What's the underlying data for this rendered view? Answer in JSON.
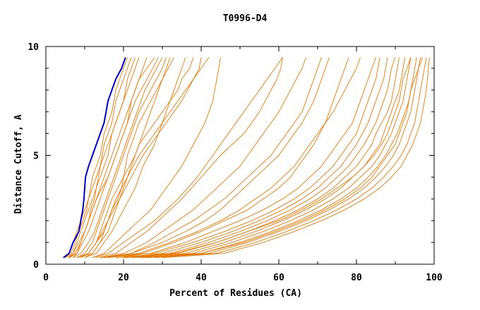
{
  "chart_data": {
    "type": "line",
    "title": "T0996-D4",
    "xlabel": "Percent of Residues (CA)",
    "ylabel": "Distance Cutoff, A",
    "xlim": [
      0,
      100
    ],
    "ylim": [
      0,
      10
    ],
    "x_ticks": [
      0,
      20,
      40,
      60,
      80,
      100
    ],
    "x_tick_labels": [
      "0",
      "20",
      "40",
      "60",
      "80",
      "100"
    ],
    "y_ticks": [
      0,
      5,
      10
    ],
    "y_tick_labels": [
      "0",
      "5",
      "10"
    ],
    "grid": false,
    "legend": "none",
    "colors": {
      "highlight": "#0000cc",
      "others": "#e87800",
      "axis": "#000000"
    },
    "y_levels": [
      0.3,
      0.5,
      1,
      1.5,
      2,
      2.5,
      3,
      3.5,
      4,
      4.5,
      5,
      5.5,
      6,
      6.5,
      7,
      7.5,
      8,
      8.5,
      9,
      9.5
    ],
    "highlight_series": {
      "x": [
        4.5,
        6,
        7,
        8.5,
        9,
        9.5,
        9.8,
        10,
        10.2,
        11,
        12,
        13,
        14,
        15,
        15.5,
        16,
        17,
        18,
        19.5,
        20.5
      ]
    },
    "series": [
      {
        "x": [
          5,
          6.5,
          7.5,
          8.5,
          9.5,
          10.5,
          11,
          11.5,
          12,
          13,
          14,
          14.5,
          15,
          16,
          17,
          17.5,
          18,
          19,
          20,
          21
        ]
      },
      {
        "x": [
          5,
          6,
          7,
          8,
          9,
          10,
          11,
          12,
          13,
          14,
          14.5,
          15,
          16,
          17,
          17.5,
          18,
          19,
          20,
          21,
          22
        ]
      },
      {
        "x": [
          6,
          7,
          8.5,
          10,
          11,
          11.5,
          12.5,
          13,
          14,
          15,
          16,
          16.5,
          17,
          18,
          19,
          20,
          20.5,
          21,
          22,
          23
        ]
      },
      {
        "x": [
          5.5,
          7,
          8,
          9,
          10,
          11,
          12,
          13,
          13.5,
          14,
          15,
          16,
          17,
          18,
          19,
          20,
          21,
          22,
          23,
          24
        ]
      },
      {
        "x": [
          6,
          8,
          9.5,
          11,
          12,
          13,
          14,
          15,
          16,
          17,
          18,
          19,
          20,
          21,
          21.5,
          22,
          23,
          24,
          25,
          26
        ]
      },
      {
        "x": [
          6,
          7.5,
          9,
          10,
          11,
          12,
          13,
          14,
          15,
          16,
          17,
          18,
          19,
          20,
          21,
          22,
          23,
          24,
          26,
          28
        ]
      },
      {
        "x": [
          7,
          9,
          11,
          12.5,
          13.5,
          14.5,
          15.5,
          16.5,
          17.5,
          18.5,
          19.5,
          20.5,
          21.5,
          22.5,
          23.5,
          24.5,
          25.5,
          27,
          28.5,
          30
        ]
      },
      {
        "x": [
          7,
          8,
          9,
          10,
          11,
          12,
          13,
          14.5,
          16,
          17,
          18,
          19,
          20,
          21,
          22,
          23,
          24.5,
          26,
          27.5,
          29
        ]
      },
      {
        "x": [
          8,
          10,
          12,
          13,
          14,
          15,
          16,
          17,
          18,
          19,
          20,
          21,
          22,
          23,
          24,
          25.5,
          27,
          28.5,
          30,
          31
        ]
      },
      {
        "x": [
          8,
          11,
          13,
          14.5,
          16,
          17,
          18.5,
          19.5,
          20,
          20.5,
          21,
          22,
          23,
          24,
          25.5,
          27,
          28.5,
          30,
          31,
          32
        ]
      },
      {
        "x": [
          9,
          11,
          13,
          14,
          15,
          16,
          17,
          18.5,
          20,
          21.5,
          23,
          24,
          25,
          26,
          27,
          28,
          29,
          30,
          31.5,
          33
        ]
      },
      {
        "x": [
          10,
          13,
          15,
          17,
          18.5,
          20,
          21.5,
          23,
          24,
          25,
          26.5,
          28,
          29,
          30,
          31,
          32,
          33,
          34,
          35,
          36
        ]
      },
      {
        "x": [
          8,
          12,
          14,
          16,
          17,
          18,
          19,
          20,
          21,
          22,
          23,
          24,
          26,
          28,
          30,
          32,
          34,
          35,
          37,
          38
        ]
      },
      {
        "x": [
          9,
          11,
          13,
          15,
          16,
          17.5,
          19,
          20.5,
          22,
          23.5,
          25,
          27,
          29,
          31,
          33,
          35,
          36.5,
          38,
          39.5,
          40
        ]
      },
      {
        "x": [
          10,
          12,
          14,
          15,
          16,
          17,
          18,
          19.5,
          21,
          22.5,
          24,
          26,
          28,
          30,
          32,
          34,
          36,
          38,
          40,
          42
        ]
      },
      {
        "x": [
          12,
          15,
          18,
          21,
          24,
          27,
          29,
          31,
          33,
          35,
          36.5,
          38,
          39.5,
          41,
          42,
          43,
          43.5,
          44,
          44.5,
          45
        ]
      },
      {
        "x": [
          12,
          16,
          20,
          24,
          28,
          31,
          34,
          36.5,
          39,
          41,
          43,
          45,
          47,
          49,
          51,
          53,
          55,
          57,
          59,
          61
        ]
      },
      {
        "x": [
          13,
          18,
          22,
          26,
          29,
          32,
          35,
          37.5,
          40,
          42.5,
          45,
          48,
          51,
          53,
          55,
          56.5,
          58,
          59.5,
          60.5,
          61
        ]
      },
      {
        "x": [
          14,
          20,
          26,
          30,
          34,
          38,
          41,
          44,
          47,
          50,
          52,
          54,
          56,
          58,
          60,
          61.5,
          63,
          64.5,
          66,
          67
        ]
      },
      {
        "x": [
          15,
          22,
          28,
          33,
          38,
          42,
          46,
          49,
          52,
          55,
          58,
          60,
          62,
          64,
          66,
          67,
          68,
          69,
          70,
          71
        ]
      },
      {
        "x": [
          14,
          22,
          30,
          36,
          41,
          45,
          48,
          51,
          54,
          57,
          60,
          62,
          64,
          66,
          67.5,
          69,
          70,
          71,
          72,
          73
        ]
      },
      {
        "x": [
          16,
          25,
          33,
          40,
          46,
          52,
          56,
          60,
          63,
          65,
          67,
          69,
          70.5,
          72,
          73,
          74,
          75,
          76,
          77,
          78
        ]
      },
      {
        "x": [
          15,
          24,
          32,
          39,
          45,
          50,
          54,
          58,
          61,
          64,
          66,
          68,
          70,
          72,
          74,
          75.5,
          77,
          78.5,
          80,
          81
        ]
      },
      {
        "x": [
          18,
          27,
          36,
          43,
          50,
          56,
          61,
          65,
          68,
          71,
          73,
          75,
          77,
          79,
          80,
          81,
          82,
          83,
          84,
          85
        ]
      },
      {
        "x": [
          14,
          28,
          38,
          46,
          53,
          59,
          64,
          68,
          71,
          74,
          76,
          78,
          80,
          81,
          82,
          83,
          84,
          85,
          85.5,
          86
        ]
      },
      {
        "x": [
          20,
          30,
          40,
          48,
          55,
          61,
          66,
          70,
          73,
          76,
          78,
          80,
          81.5,
          83,
          84,
          85,
          86,
          87,
          87.5,
          88
        ]
      },
      {
        "x": [
          18,
          32,
          42,
          50,
          57,
          63,
          68,
          72,
          75,
          78,
          80,
          82,
          83.5,
          85,
          86,
          87,
          88,
          88.5,
          89,
          90
        ]
      },
      {
        "x": [
          22,
          34,
          44,
          52,
          59,
          65,
          70,
          74,
          77,
          80,
          82,
          84,
          85,
          86.5,
          88,
          89,
          89.5,
          90,
          90.5,
          91
        ]
      },
      {
        "x": [
          20,
          36,
          46,
          54,
          61,
          67,
          72,
          76,
          79,
          82,
          84,
          86,
          87,
          88,
          89,
          90,
          91,
          91.5,
          92,
          92.5
        ]
      },
      {
        "x": [
          24,
          38,
          48,
          56,
          63,
          69,
          74,
          78,
          81,
          84,
          86,
          87.5,
          89,
          90,
          91,
          92,
          92.5,
          93,
          93.5,
          94
        ]
      },
      {
        "x": [
          22,
          40,
          50,
          58,
          65,
          71,
          76,
          80,
          83,
          85.5,
          87.5,
          89,
          90.5,
          91.5,
          92.5,
          93.5,
          94,
          94.5,
          95,
          95.5
        ]
      },
      {
        "x": [
          26,
          42,
          52,
          60,
          67,
          73,
          78,
          82,
          85,
          87.5,
          89.5,
          91,
          92,
          93,
          94,
          94.5,
          95,
          95.5,
          96,
          96.5
        ]
      },
      {
        "x": [
          28,
          44,
          54,
          62,
          69,
          75,
          80,
          84,
          87,
          89.5,
          91.5,
          93,
          94,
          95,
          95.5,
          96,
          96.5,
          97,
          97.5,
          98
        ]
      },
      {
        "x": [
          30,
          46,
          56,
          64,
          71,
          77,
          82,
          86,
          89,
          91.5,
          93,
          94.5,
          95.5,
          96.5,
          97,
          97.5,
          98,
          98.3,
          98.5,
          98.8
        ]
      },
      {
        "x": [
          25,
          40,
          51,
          59,
          66,
          72,
          77,
          81,
          84,
          86,
          88,
          90,
          91,
          92,
          93,
          93.5,
          94,
          95,
          96,
          97
        ]
      },
      {
        "x": [
          20,
          33,
          44,
          52,
          60,
          66,
          71,
          75,
          79,
          82,
          84.5,
          86.5,
          88,
          89,
          90,
          91,
          91.5,
          92,
          93,
          94
        ]
      }
    ]
  }
}
